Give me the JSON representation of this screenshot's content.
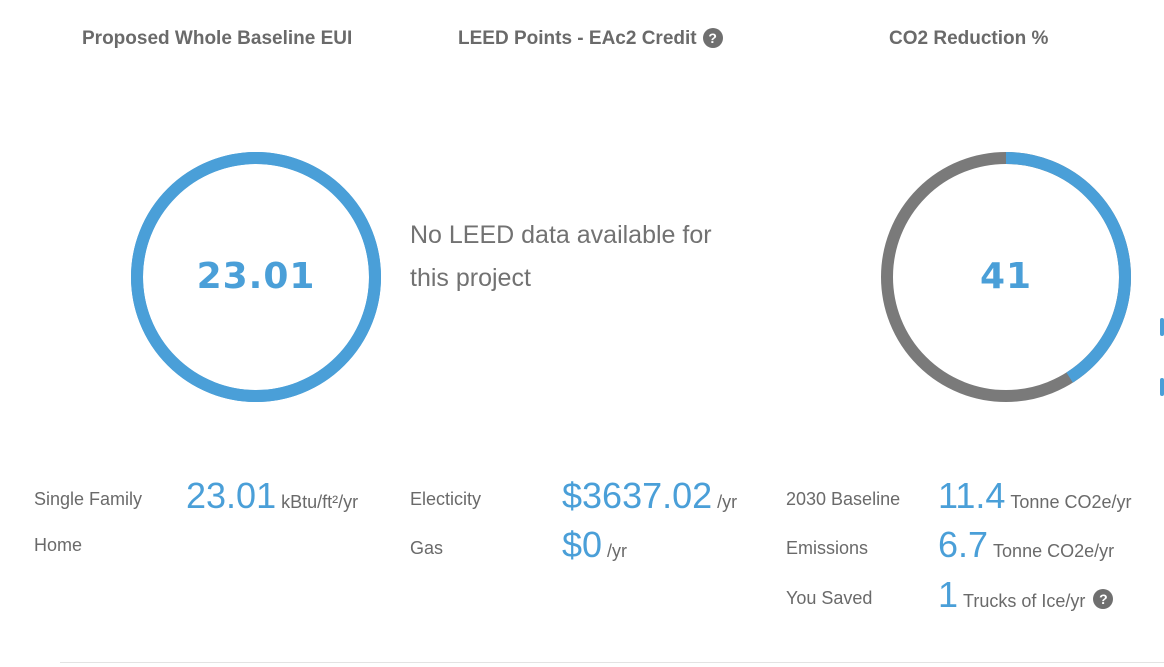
{
  "eui": {
    "title": "Proposed Whole Baseline EUI",
    "gauge_value": "23.01",
    "gauge_fill_percent": 100,
    "building_type": "Single Family",
    "building_type_line2": "Home",
    "value": "23.01",
    "unit": "kBtu/ft²/yr"
  },
  "leed": {
    "title": "LEED Points - EAc2 Credit",
    "help_icon": "?",
    "message": "No LEED data available for this project",
    "electricity_label": "Electicity",
    "electricity_value": "$3637.02",
    "electricity_unit": "/yr",
    "gas_label": "Gas",
    "gas_value": "$0",
    "gas_unit": "/yr"
  },
  "co2": {
    "title": "CO2 Reduction %",
    "gauge_value": "41",
    "gauge_fill_percent": 41,
    "baseline_label": "2030 Baseline",
    "baseline_value": "11.4",
    "baseline_unit": "Tonne CO2e/yr",
    "emissions_label": "Emissions",
    "emissions_value": "6.7",
    "emissions_unit": "Tonne CO2e/yr",
    "saved_label": "You Saved",
    "saved_value": "1",
    "saved_unit": "Trucks of Ice/yr",
    "help_icon": "?"
  },
  "colors": {
    "accent": "#4a9fd8",
    "remainder": "#7a7a7a",
    "text": "#6a6a6a"
  }
}
